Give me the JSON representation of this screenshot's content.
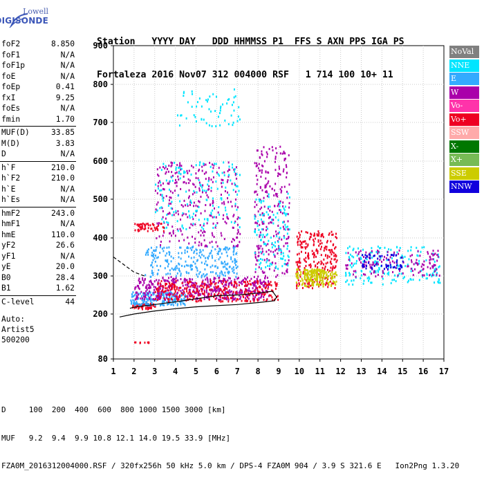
{
  "logo": {
    "line1": "Lowell",
    "line2": "DIGISONDE"
  },
  "header": {
    "line1": "Station   YYYY DAY   DDD HHMMSS P1  FFS S AXN PPS IGA PS",
    "line2": "Fortaleza 2016 Nov07 312 004000 RSF   1 714 100 10+ 11"
  },
  "params": [
    {
      "k": "foF2",
      "v": "8.850"
    },
    {
      "k": "foF1",
      "v": "N/A"
    },
    {
      "k": "foF1p",
      "v": "N/A"
    },
    {
      "k": "foE",
      "v": "N/A"
    },
    {
      "k": "foEp",
      "v": "0.41"
    },
    {
      "k": "fxI",
      "v": "9.25"
    },
    {
      "k": "foEs",
      "v": "N/A"
    },
    {
      "k": "fmin",
      "v": "1.70"
    },
    {
      "k": "MUF(D)",
      "v": "33.85"
    },
    {
      "k": "M(D)",
      "v": "3.83"
    },
    {
      "k": "D",
      "v": "N/A"
    },
    {
      "k": "h`F",
      "v": "210.0"
    },
    {
      "k": "h`F2",
      "v": "210.0"
    },
    {
      "k": "h`E",
      "v": "N/A"
    },
    {
      "k": "h`Es",
      "v": "N/A"
    },
    {
      "k": "hmF2",
      "v": "243.0"
    },
    {
      "k": "hmF1",
      "v": "N/A"
    },
    {
      "k": "hmE",
      "v": "110.0"
    },
    {
      "k": "yF2",
      "v": "26.6"
    },
    {
      "k": "yF1",
      "v": "N/A"
    },
    {
      "k": "yE",
      "v": "20.0"
    },
    {
      "k": "B0",
      "v": "28.4"
    },
    {
      "k": "B1",
      "v": "1.62"
    },
    {
      "k": "C-level",
      "v": "44"
    }
  ],
  "auto": {
    "line1": "Auto:",
    "line2": "Artist5",
    "line3": "500200"
  },
  "legend": [
    {
      "label": "NoVal",
      "color": "#808080"
    },
    {
      "label": "NNE",
      "color": "#00e5ff"
    },
    {
      "label": "E",
      "color": "#33aaff"
    },
    {
      "label": "W",
      "color": "#aa00aa"
    },
    {
      "label": "Vo-",
      "color": "#ff33aa"
    },
    {
      "label": "Vo+",
      "color": "#ee0022"
    },
    {
      "label": "SSW",
      "color": "#ffaaaa"
    },
    {
      "label": "X-",
      "color": "#007700"
    },
    {
      "label": "X+",
      "color": "#77bb55"
    },
    {
      "label": "SSE",
      "color": "#cccc00"
    },
    {
      "label": "NNW",
      "color": "#1100dd"
    }
  ],
  "bottom": {
    "line1": "D     100  200  400  600  800 1000 1500 3000 [km]",
    "line2": "MUF   9.2  9.4  9.9 10.8 12.1 14.0 19.5 33.9 [MHz]",
    "line3": "FZA0M_2016312004000.RSF / 320fx256h 50 kHz 5.0 km / DPS-4 FZA0M 904 / 3.9 S 321.6 E   Ion2Png 1.3.20"
  },
  "chart_data": {
    "type": "scatter",
    "xlim": [
      1,
      17
    ],
    "ylim": [
      80,
      900
    ],
    "x_ticks": [
      1,
      2,
      3,
      4,
      5,
      6,
      7,
      8,
      9,
      10,
      11,
      12,
      13,
      14,
      15,
      16,
      17
    ],
    "y_ticks": [
      80,
      200,
      300,
      400,
      500,
      600,
      700,
      800,
      900
    ],
    "grid": true,
    "clusters": [
      {
        "x": [
          1.9,
          3.0
        ],
        "y": [
          215,
          230
        ],
        "color": "#ee0022",
        "n": 60
      },
      {
        "x": [
          1.8,
          4.5
        ],
        "y": [
          225,
          260
        ],
        "color": "#33aaff",
        "n": 200
      },
      {
        "x": [
          2.0,
          8.5
        ],
        "y": [
          240,
          300
        ],
        "color": "#aa00aa",
        "n": 500
      },
      {
        "x": [
          3.0,
          9.0
        ],
        "y": [
          235,
          290
        ],
        "color": "#ee0022",
        "n": 300
      },
      {
        "x": [
          2.5,
          7.0
        ],
        "y": [
          300,
          380
        ],
        "color": "#33aaff",
        "n": 250
      },
      {
        "x": [
          3.0,
          7.1
        ],
        "y": [
          380,
          600
        ],
        "color": "#aa00aa",
        "n": 300
      },
      {
        "x": [
          3.0,
          7.1
        ],
        "y": [
          420,
          600
        ],
        "color": "#00e5ff",
        "n": 150
      },
      {
        "x": [
          4.0,
          7.1
        ],
        "y": [
          690,
          790
        ],
        "color": "#00e5ff",
        "n": 60
      },
      {
        "x": [
          7.8,
          9.5
        ],
        "y": [
          300,
          640
        ],
        "color": "#aa00aa",
        "n": 250
      },
      {
        "x": [
          7.8,
          9.5
        ],
        "y": [
          320,
          520
        ],
        "color": "#00e5ff",
        "n": 120
      },
      {
        "x": [
          9.8,
          11.8
        ],
        "y": [
          270,
          420
        ],
        "color": "#ee0022",
        "n": 250
      },
      {
        "x": [
          9.8,
          11.8
        ],
        "y": [
          275,
          320
        ],
        "color": "#cccc00",
        "n": 120
      },
      {
        "x": [
          10.2,
          11.2
        ],
        "y": [
          290,
          320
        ],
        "color": "#cccc00",
        "n": 80
      },
      {
        "x": [
          12.2,
          16.8
        ],
        "y": [
          280,
          380
        ],
        "color": "#00e5ff",
        "n": 180
      },
      {
        "x": [
          12.2,
          16.8
        ],
        "y": [
          300,
          370
        ],
        "color": "#aa00aa",
        "n": 140
      },
      {
        "x": [
          13.0,
          15.0
        ],
        "y": [
          320,
          360
        ],
        "color": "#1100dd",
        "n": 60
      },
      {
        "x": [
          2.0,
          3.5
        ],
        "y": [
          420,
          440
        ],
        "color": "#ee0022",
        "n": 50
      },
      {
        "x": [
          1.9,
          2.8
        ],
        "y": [
          125,
          127
        ],
        "color": "#ee0022",
        "n": 10
      }
    ],
    "traces": [
      {
        "name": "",
        "color": "#000000",
        "x": [
          1.3,
          2.0,
          3.0,
          4.0,
          5.0,
          6.0,
          7.0,
          8.0,
          8.8,
          8.9,
          8.7,
          8.0,
          7.0,
          6.0,
          5.0,
          4.0,
          3.0,
          2.0,
          1.8
        ],
        "y": [
          192,
          200,
          208,
          214,
          219,
          222,
          225,
          230,
          235,
          245,
          260,
          255,
          250,
          248,
          240,
          232,
          225,
          218,
          215
        ]
      },
      {
        "name": "",
        "color": "#000000",
        "dash": true,
        "x": [
          1.0,
          1.5,
          2.0,
          2.5
        ],
        "y": [
          350,
          330,
          310,
          300
        ]
      }
    ]
  }
}
